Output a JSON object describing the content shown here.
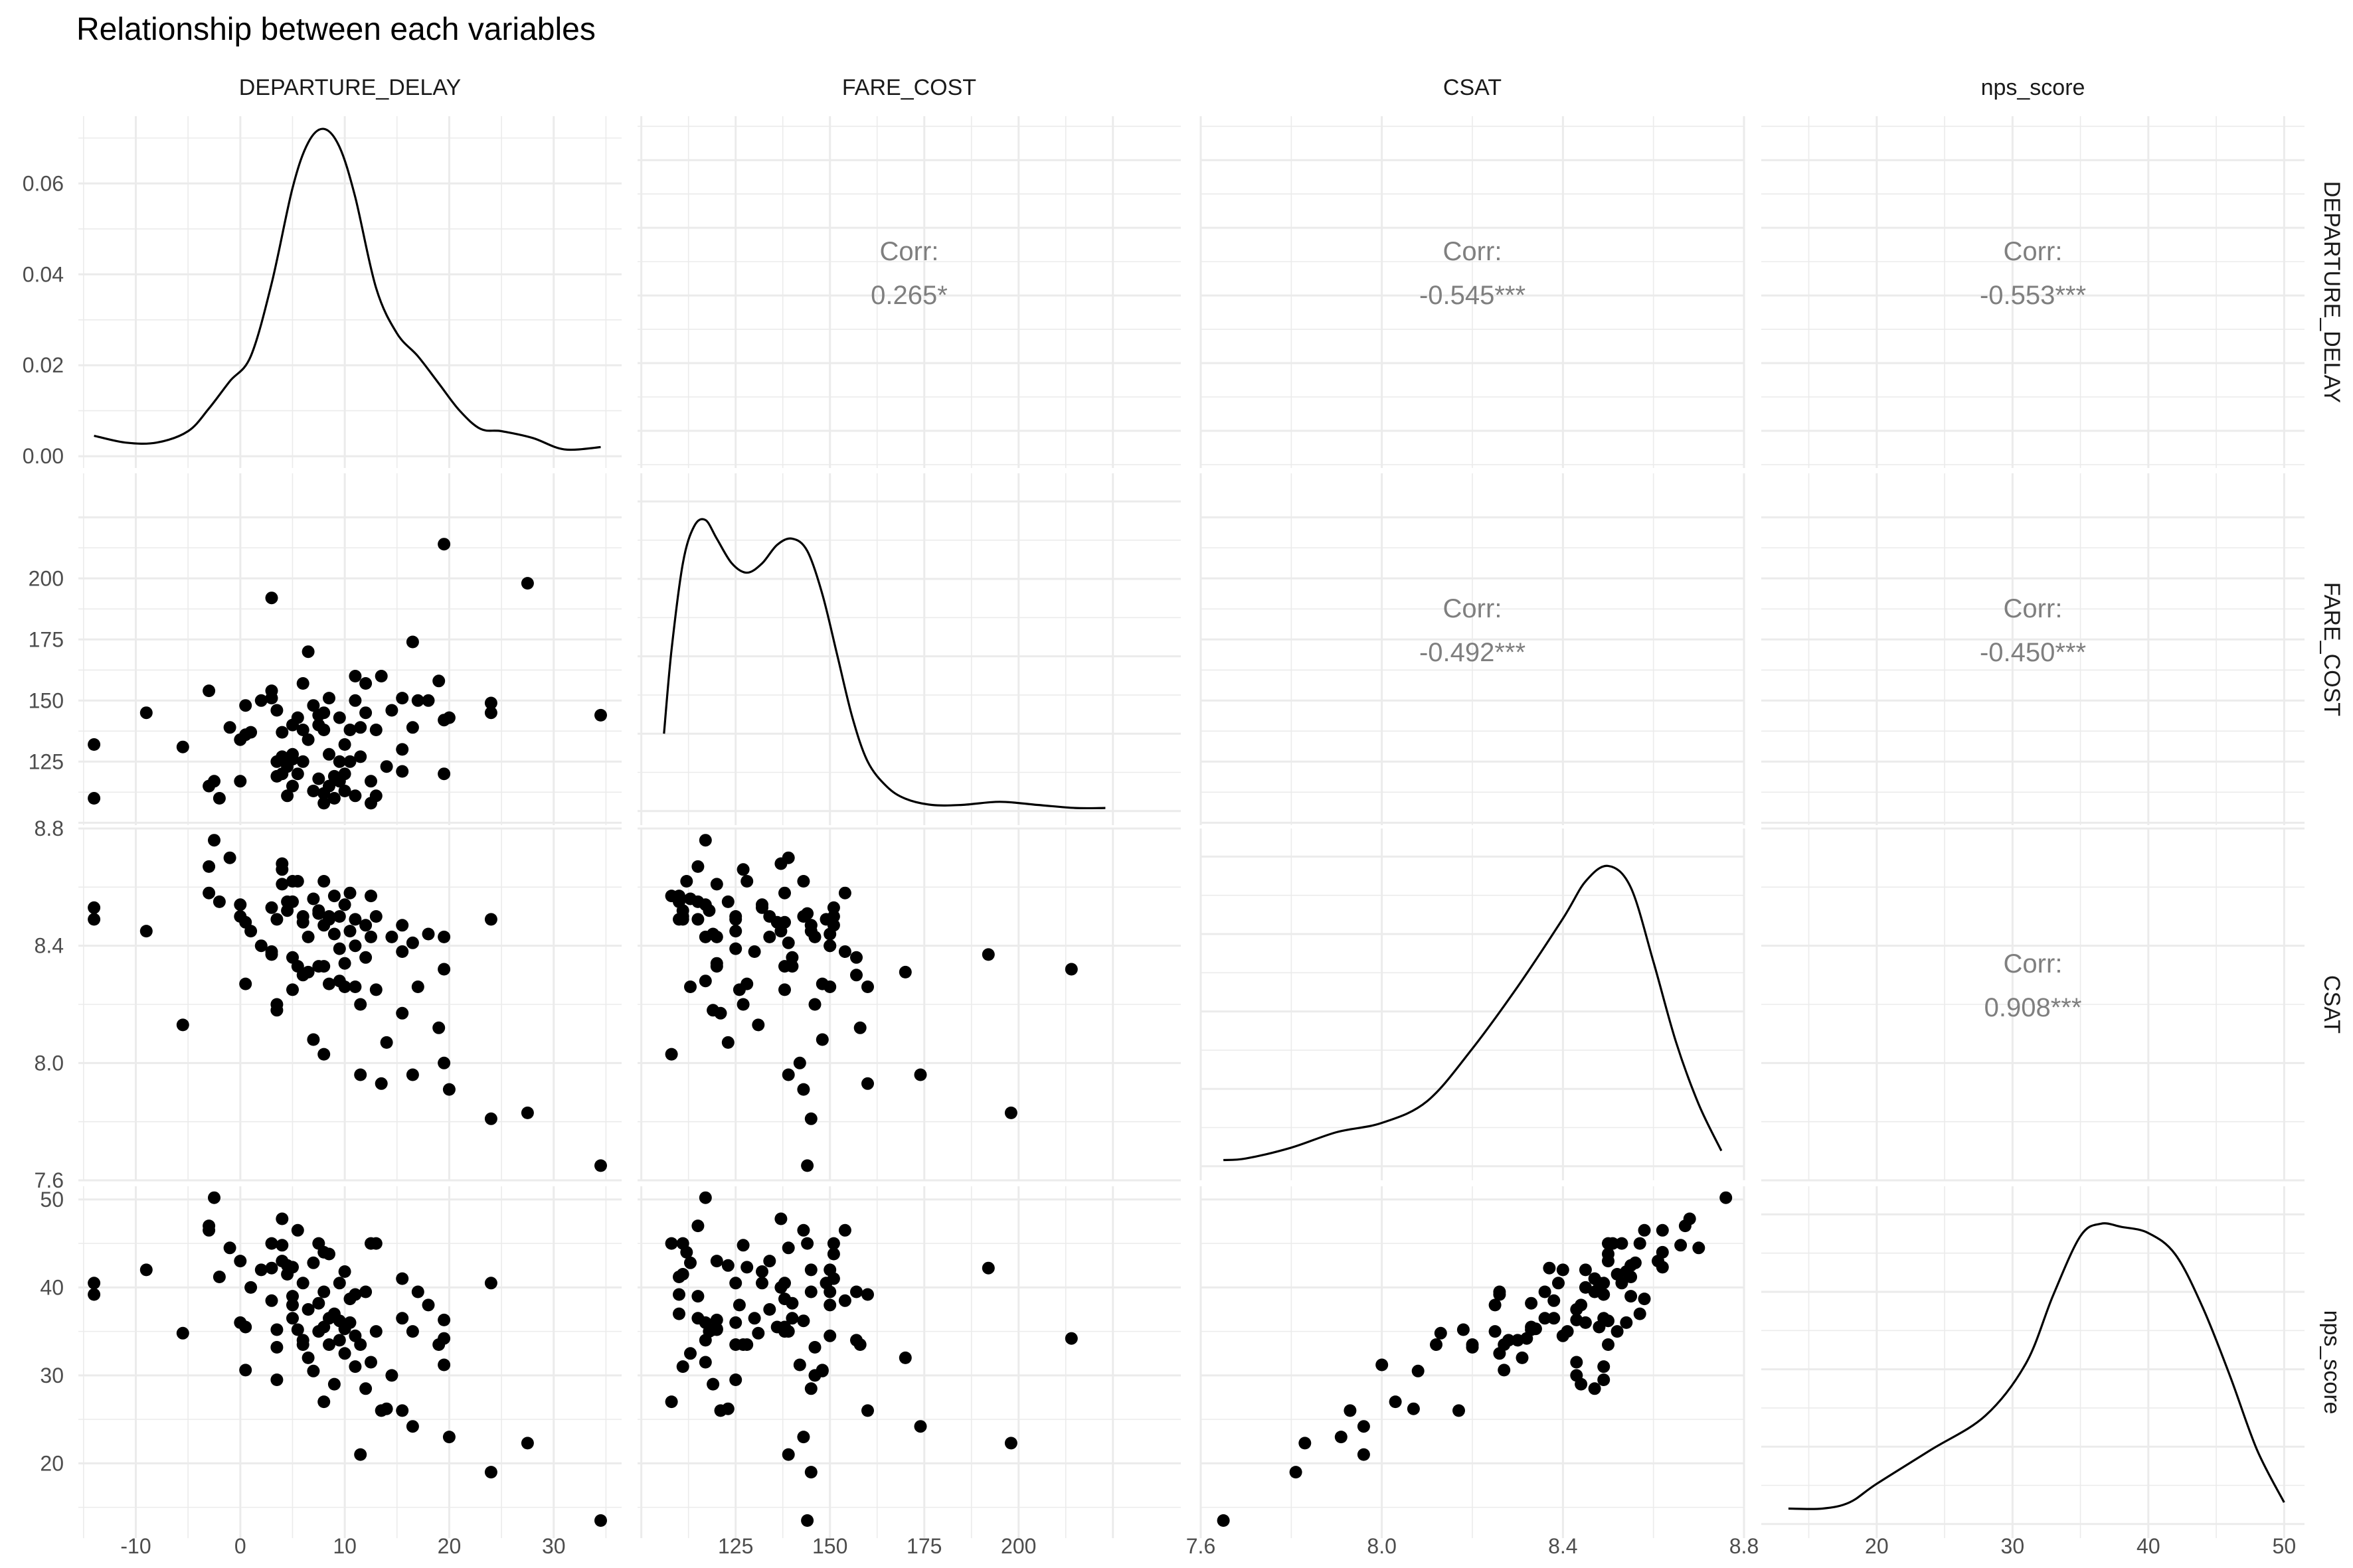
{
  "chart_data": {
    "type": "scatter",
    "title": "Relationship between each variables",
    "variables": [
      "DEPARTURE_DELAY",
      "FARE_COST",
      "CSAT",
      "nps_score"
    ],
    "axes": {
      "DEPARTURE_DELAY": {
        "range": [
          -15.5,
          36.5
        ],
        "ticks": [
          -10,
          0,
          10,
          20,
          30
        ],
        "tick_labels": [
          "-10",
          "0",
          "10",
          "20",
          "30"
        ]
      },
      "FARE_COST": {
        "range": [
          99,
          243
        ],
        "ticks": [
          125,
          150,
          175,
          200
        ],
        "tick_labels": [
          "125",
          "150",
          "175",
          "200"
        ]
      },
      "CSAT": {
        "range": [
          7.6,
          8.8
        ],
        "ticks": [
          7.6,
          8.0,
          8.4,
          8.8
        ],
        "tick_labels": [
          "7.6",
          "8.0",
          "8.4",
          "8.8"
        ]
      },
      "nps_score": {
        "range": [
          11.5,
          51.5
        ],
        "ticks": [
          20,
          30,
          40,
          50
        ],
        "tick_labels": [
          "20",
          "30",
          "40",
          "50"
        ]
      }
    },
    "density_axis": {
      "range": [
        -0.0026,
        0.0748
      ],
      "ticks": [
        0.0,
        0.02,
        0.04,
        0.06
      ],
      "tick_labels": [
        "0.00",
        "0.02",
        "0.04",
        "0.06"
      ]
    },
    "correlations": [
      {
        "row": 0,
        "col": 1,
        "label": "Corr:",
        "value": "0.265*"
      },
      {
        "row": 0,
        "col": 2,
        "label": "Corr:",
        "value": "-0.545***"
      },
      {
        "row": 0,
        "col": 3,
        "label": "Corr:",
        "value": "-0.553***"
      },
      {
        "row": 1,
        "col": 2,
        "label": "Corr:",
        "value": "-0.492***"
      },
      {
        "row": 1,
        "col": 3,
        "label": "Corr:",
        "value": "-0.450***"
      },
      {
        "row": 2,
        "col": 3,
        "label": "Corr:",
        "value": "0.908***"
      }
    ],
    "densities": {
      "DEPARTURE_DELAY": [
        [
          -14,
          0.0045
        ],
        [
          -11,
          0.003
        ],
        [
          -8,
          0.003
        ],
        [
          -5,
          0.0055
        ],
        [
          -3,
          0.0105
        ],
        [
          -1,
          0.0165
        ],
        [
          1,
          0.022
        ],
        [
          3,
          0.038
        ],
        [
          5,
          0.059
        ],
        [
          6.5,
          0.069
        ],
        [
          8,
          0.072
        ],
        [
          9.5,
          0.068
        ],
        [
          11,
          0.057
        ],
        [
          13,
          0.037
        ],
        [
          15,
          0.027
        ],
        [
          17,
          0.022
        ],
        [
          19,
          0.016
        ],
        [
          21,
          0.01
        ],
        [
          23,
          0.006
        ],
        [
          25,
          0.0055
        ],
        [
          28,
          0.004
        ],
        [
          31,
          0.0015
        ],
        [
          34.5,
          0.002
        ]
      ],
      "FARE_COST": [
        [
          106,
          0.25
        ],
        [
          108,
          0.52
        ],
        [
          111,
          0.8
        ],
        [
          114,
          0.92
        ],
        [
          117,
          0.94
        ],
        [
          120,
          0.88
        ],
        [
          124,
          0.8
        ],
        [
          128,
          0.77
        ],
        [
          132,
          0.8
        ],
        [
          136,
          0.86
        ],
        [
          140,
          0.88
        ],
        [
          144,
          0.84
        ],
        [
          148,
          0.7
        ],
        [
          152,
          0.5
        ],
        [
          156,
          0.3
        ],
        [
          160,
          0.16
        ],
        [
          165,
          0.08
        ],
        [
          170,
          0.04
        ],
        [
          177,
          0.02
        ],
        [
          185,
          0.02
        ],
        [
          195,
          0.03
        ],
        [
          205,
          0.02
        ],
        [
          215,
          0.01
        ],
        [
          223,
          0.01
        ]
      ],
      "CSAT": [
        [
          7.65,
          0.02
        ],
        [
          7.7,
          0.025
        ],
        [
          7.8,
          0.06
        ],
        [
          7.9,
          0.11
        ],
        [
          8.0,
          0.14
        ],
        [
          8.1,
          0.21
        ],
        [
          8.2,
          0.38
        ],
        [
          8.3,
          0.58
        ],
        [
          8.4,
          0.8
        ],
        [
          8.45,
          0.92
        ],
        [
          8.5,
          0.97
        ],
        [
          8.55,
          0.9
        ],
        [
          8.6,
          0.66
        ],
        [
          8.65,
          0.4
        ],
        [
          8.7,
          0.2
        ],
        [
          8.75,
          0.05
        ]
      ],
      "nps_score": [
        [
          13.5,
          0.05
        ],
        [
          16,
          0.05
        ],
        [
          18,
          0.07
        ],
        [
          20,
          0.13
        ],
        [
          24,
          0.24
        ],
        [
          28,
          0.35
        ],
        [
          31,
          0.52
        ],
        [
          33,
          0.74
        ],
        [
          35,
          0.93
        ],
        [
          36.5,
          0.97
        ],
        [
          38,
          0.96
        ],
        [
          40,
          0.94
        ],
        [
          42,
          0.87
        ],
        [
          44,
          0.7
        ],
        [
          46,
          0.48
        ],
        [
          48,
          0.24
        ],
        [
          50,
          0.07
        ]
      ]
    },
    "points": [
      {
        "DEPARTURE_DELAY": -14,
        "FARE_COST": 132,
        "CSAT": 8.53,
        "nps_score": 40.5
      },
      {
        "DEPARTURE_DELAY": -14,
        "FARE_COST": 110,
        "CSAT": 8.49,
        "nps_score": 39.2
      },
      {
        "DEPARTURE_DELAY": -9,
        "FARE_COST": 145,
        "CSAT": 8.45,
        "nps_score": 42
      },
      {
        "DEPARTURE_DELAY": -5.5,
        "FARE_COST": 131,
        "CSAT": 8.13,
        "nps_score": 34.8
      },
      {
        "DEPARTURE_DELAY": -3,
        "FARE_COST": 115,
        "CSAT": 8.67,
        "nps_score": 47
      },
      {
        "DEPARTURE_DELAY": -3,
        "FARE_COST": 154,
        "CSAT": 8.58,
        "nps_score": 46.5
      },
      {
        "DEPARTURE_DELAY": -2.5,
        "FARE_COST": 117,
        "CSAT": 8.76,
        "nps_score": 50.2
      },
      {
        "DEPARTURE_DELAY": -2,
        "FARE_COST": 110,
        "CSAT": 8.55,
        "nps_score": 41.2
      },
      {
        "DEPARTURE_DELAY": -1,
        "FARE_COST": 139,
        "CSAT": 8.7,
        "nps_score": 44.5
      },
      {
        "DEPARTURE_DELAY": 0,
        "FARE_COST": 117,
        "CSAT": 8.54,
        "nps_score": 36
      },
      {
        "DEPARTURE_DELAY": 0,
        "FARE_COST": 134,
        "CSAT": 8.5,
        "nps_score": 43
      },
      {
        "DEPARTURE_DELAY": 0.5,
        "FARE_COST": 148,
        "CSAT": 8.27,
        "nps_score": 30.6
      },
      {
        "DEPARTURE_DELAY": 0.5,
        "FARE_COST": 136,
        "CSAT": 8.48,
        "nps_score": 35.5
      },
      {
        "DEPARTURE_DELAY": 1,
        "FARE_COST": 137,
        "CSAT": 8.45,
        "nps_score": 40
      },
      {
        "DEPARTURE_DELAY": 2,
        "FARE_COST": 150,
        "CSAT": 8.4,
        "nps_score": 42
      },
      {
        "DEPARTURE_DELAY": 3,
        "FARE_COST": 192,
        "CSAT": 8.37,
        "nps_score": 42.2
      },
      {
        "DEPARTURE_DELAY": 3,
        "FARE_COST": 151,
        "CSAT": 8.53,
        "nps_score": 45
      },
      {
        "DEPARTURE_DELAY": 3,
        "FARE_COST": 154,
        "CSAT": 8.38,
        "nps_score": 38.5
      },
      {
        "DEPARTURE_DELAY": 3.5,
        "FARE_COST": 146,
        "CSAT": 8.2,
        "nps_score": 33.2
      },
      {
        "DEPARTURE_DELAY": 3.5,
        "FARE_COST": 119,
        "CSAT": 8.18,
        "nps_score": 35.2
      },
      {
        "DEPARTURE_DELAY": 3.5,
        "FARE_COST": 125,
        "CSAT": 8.49,
        "nps_score": 29.5
      },
      {
        "DEPARTURE_DELAY": 4,
        "FARE_COST": 137,
        "CSAT": 8.68,
        "nps_score": 47.8
      },
      {
        "DEPARTURE_DELAY": 4,
        "FARE_COST": 127,
        "CSAT": 8.66,
        "nps_score": 44.8
      },
      {
        "DEPARTURE_DELAY": 4,
        "FARE_COST": 120,
        "CSAT": 8.61,
        "nps_score": 43
      },
      {
        "DEPARTURE_DELAY": 4.5,
        "FARE_COST": 123,
        "CSAT": 8.55,
        "nps_score": 42.5
      },
      {
        "DEPARTURE_DELAY": 4.5,
        "FARE_COST": 111,
        "CSAT": 8.52,
        "nps_score": 41.5
      },
      {
        "DEPARTURE_DELAY": 5,
        "FARE_COST": 115,
        "CSAT": 8.55,
        "nps_score": 39
      },
      {
        "DEPARTURE_DELAY": 5,
        "FARE_COST": 128,
        "CSAT": 8.62,
        "nps_score": 42.3
      },
      {
        "DEPARTURE_DELAY": 5,
        "FARE_COST": 140,
        "CSAT": 8.36,
        "nps_score": 36.5
      },
      {
        "DEPARTURE_DELAY": 5,
        "FARE_COST": 126,
        "CSAT": 8.25,
        "nps_score": 38
      },
      {
        "DEPARTURE_DELAY": 5.5,
        "FARE_COST": 143,
        "CSAT": 8.62,
        "nps_score": 46.5
      },
      {
        "DEPARTURE_DELAY": 5.5,
        "FARE_COST": 120,
        "CSAT": 8.33,
        "nps_score": 35.2
      },
      {
        "DEPARTURE_DELAY": 6,
        "FARE_COST": 138,
        "CSAT": 8.48,
        "nps_score": 40.5
      },
      {
        "DEPARTURE_DELAY": 6,
        "FARE_COST": 157,
        "CSAT": 8.3,
        "nps_score": 34
      },
      {
        "DEPARTURE_DELAY": 6,
        "FARE_COST": 125,
        "CSAT": 8.5,
        "nps_score": 33.5
      },
      {
        "DEPARTURE_DELAY": 6.5,
        "FARE_COST": 170,
        "CSAT": 8.31,
        "nps_score": 32
      },
      {
        "DEPARTURE_DELAY": 6.5,
        "FARE_COST": 134,
        "CSAT": 8.43,
        "nps_score": 37.5
      },
      {
        "DEPARTURE_DELAY": 7,
        "FARE_COST": 148,
        "CSAT": 8.08,
        "nps_score": 30.5
      },
      {
        "DEPARTURE_DELAY": 7,
        "FARE_COST": 113,
        "CSAT": 8.56,
        "nps_score": 42.8
      },
      {
        "DEPARTURE_DELAY": 7.5,
        "FARE_COST": 140,
        "CSAT": 8.33,
        "nps_score": 38.2
      },
      {
        "DEPARTURE_DELAY": 7.5,
        "FARE_COST": 144,
        "CSAT": 8.51,
        "nps_score": 45
      },
      {
        "DEPARTURE_DELAY": 7.5,
        "FARE_COST": 118,
        "CSAT": 8.52,
        "nps_score": 35
      },
      {
        "DEPARTURE_DELAY": 8,
        "FARE_COST": 108,
        "CSAT": 8.03,
        "nps_score": 27
      },
      {
        "DEPARTURE_DELAY": 8,
        "FARE_COST": 112,
        "CSAT": 8.62,
        "nps_score": 44
      },
      {
        "DEPARTURE_DELAY": 8,
        "FARE_COST": 145,
        "CSAT": 8.47,
        "nps_score": 39.5
      },
      {
        "DEPARTURE_DELAY": 8,
        "FARE_COST": 138,
        "CSAT": 8.33,
        "nps_score": 35.5
      },
      {
        "DEPARTURE_DELAY": 8.5,
        "FARE_COST": 151,
        "CSAT": 8.5,
        "nps_score": 43.8
      },
      {
        "DEPARTURE_DELAY": 8.5,
        "FARE_COST": 128,
        "CSAT": 8.27,
        "nps_score": 33.5
      },
      {
        "DEPARTURE_DELAY": 8.5,
        "FARE_COST": 115,
        "CSAT": 8.49,
        "nps_score": 36.5
      },
      {
        "DEPARTURE_DELAY": 9,
        "FARE_COST": 119,
        "CSAT": 8.44,
        "nps_score": 29
      },
      {
        "DEPARTURE_DELAY": 9,
        "FARE_COST": 110,
        "CSAT": 8.57,
        "nps_score": 37
      },
      {
        "DEPARTURE_DELAY": 9.5,
        "FARE_COST": 125,
        "CSAT": 8.39,
        "nps_score": 40.5
      },
      {
        "DEPARTURE_DELAY": 9.5,
        "FARE_COST": 117,
        "CSAT": 8.28,
        "nps_score": 34
      },
      {
        "DEPARTURE_DELAY": 9.5,
        "FARE_COST": 143,
        "CSAT": 8.5,
        "nps_score": 36.2
      },
      {
        "DEPARTURE_DELAY": 10,
        "FARE_COST": 132,
        "CSAT": 8.54,
        "nps_score": 41.8
      },
      {
        "DEPARTURE_DELAY": 10,
        "FARE_COST": 120,
        "CSAT": 8.34,
        "nps_score": 35.3
      },
      {
        "DEPARTURE_DELAY": 10,
        "FARE_COST": 113,
        "CSAT": 8.26,
        "nps_score": 32.5
      },
      {
        "DEPARTURE_DELAY": 10.5,
        "FARE_COST": 138,
        "CSAT": 8.58,
        "nps_score": 38.7
      },
      {
        "DEPARTURE_DELAY": 10.5,
        "FARE_COST": 125,
        "CSAT": 8.45,
        "nps_score": 36
      },
      {
        "DEPARTURE_DELAY": 11,
        "FARE_COST": 111,
        "CSAT": 8.49,
        "nps_score": 31
      },
      {
        "DEPARTURE_DELAY": 11,
        "FARE_COST": 160,
        "CSAT": 8.26,
        "nps_score": 39.2
      },
      {
        "DEPARTURE_DELAY": 11,
        "FARE_COST": 150,
        "CSAT": 8.4,
        "nps_score": 34.5
      },
      {
        "DEPARTURE_DELAY": 11.5,
        "FARE_COST": 139,
        "CSAT": 7.96,
        "nps_score": 21
      },
      {
        "DEPARTURE_DELAY": 11.5,
        "FARE_COST": 127,
        "CSAT": 8.2,
        "nps_score": 33.5
      },
      {
        "DEPARTURE_DELAY": 12,
        "FARE_COST": 157,
        "CSAT": 8.36,
        "nps_score": 39.5
      },
      {
        "DEPARTURE_DELAY": 12,
        "FARE_COST": 145,
        "CSAT": 8.47,
        "nps_score": 28.5
      },
      {
        "DEPARTURE_DELAY": 12.5,
        "FARE_COST": 108,
        "CSAT": 8.57,
        "nps_score": 45
      },
      {
        "DEPARTURE_DELAY": 12.5,
        "FARE_COST": 117,
        "CSAT": 8.43,
        "nps_score": 31.5
      },
      {
        "DEPARTURE_DELAY": 13,
        "FARE_COST": 138,
        "CSAT": 8.25,
        "nps_score": 35
      },
      {
        "DEPARTURE_DELAY": 13,
        "FARE_COST": 111,
        "CSAT": 8.5,
        "nps_score": 45
      },
      {
        "DEPARTURE_DELAY": 13.5,
        "FARE_COST": 160,
        "CSAT": 7.93,
        "nps_score": 26
      },
      {
        "DEPARTURE_DELAY": 14,
        "FARE_COST": 123,
        "CSAT": 8.07,
        "nps_score": 26.2
      },
      {
        "DEPARTURE_DELAY": 14.5,
        "FARE_COST": 146,
        "CSAT": 8.43,
        "nps_score": 30
      },
      {
        "DEPARTURE_DELAY": 15.5,
        "FARE_COST": 151,
        "CSAT": 8.47,
        "nps_score": 41
      },
      {
        "DEPARTURE_DELAY": 15.5,
        "FARE_COST": 130,
        "CSAT": 8.38,
        "nps_score": 36.5
      },
      {
        "DEPARTURE_DELAY": 15.5,
        "FARE_COST": 121,
        "CSAT": 8.17,
        "nps_score": 26
      },
      {
        "DEPARTURE_DELAY": 16.5,
        "FARE_COST": 174,
        "CSAT": 7.96,
        "nps_score": 24.2
      },
      {
        "DEPARTURE_DELAY": 16.5,
        "FARE_COST": 139,
        "CSAT": 8.41,
        "nps_score": 35
      },
      {
        "DEPARTURE_DELAY": 17,
        "FARE_COST": 150,
        "CSAT": 8.26,
        "nps_score": 39.5
      },
      {
        "DEPARTURE_DELAY": 18,
        "FARE_COST": 150,
        "CSAT": 8.44,
        "nps_score": 38
      },
      {
        "DEPARTURE_DELAY": 19,
        "FARE_COST": 158,
        "CSAT": 8.12,
        "nps_score": 33.5
      },
      {
        "DEPARTURE_DELAY": 19.5,
        "FARE_COST": 120,
        "CSAT": 8.43,
        "nps_score": 36.3
      },
      {
        "DEPARTURE_DELAY": 19.5,
        "FARE_COST": 214,
        "CSAT": 8.32,
        "nps_score": 34.2
      },
      {
        "DEPARTURE_DELAY": 19.5,
        "FARE_COST": 142,
        "CSAT": 8.0,
        "nps_score": 31.2
      },
      {
        "DEPARTURE_DELAY": 20,
        "FARE_COST": 143,
        "CSAT": 7.91,
        "nps_score": 23
      },
      {
        "DEPARTURE_DELAY": 24,
        "FARE_COST": 149,
        "CSAT": 8.49,
        "nps_score": 40.5
      },
      {
        "DEPARTURE_DELAY": 24,
        "FARE_COST": 145,
        "CSAT": 7.81,
        "nps_score": 19
      },
      {
        "DEPARTURE_DELAY": 27.5,
        "FARE_COST": 198,
        "CSAT": 7.83,
        "nps_score": 22.3
      },
      {
        "DEPARTURE_DELAY": 34.5,
        "FARE_COST": 144,
        "CSAT": 7.65,
        "nps_score": 13.5
      }
    ]
  }
}
